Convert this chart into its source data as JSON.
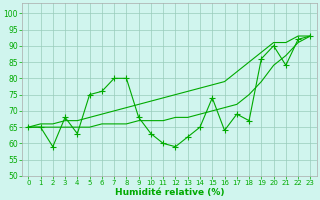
{
  "bg_color": "#d0f5ee",
  "grid_color": "#99ccbb",
  "line_color": "#00aa00",
  "xlabel": "Humidité relative (%)",
  "xlim": [
    -0.5,
    23.5
  ],
  "ylim": [
    50,
    103
  ],
  "yticks": [
    50,
    55,
    60,
    65,
    70,
    75,
    80,
    85,
    90,
    95,
    100
  ],
  "xticks": [
    0,
    1,
    2,
    3,
    4,
    5,
    6,
    7,
    8,
    9,
    10,
    11,
    12,
    13,
    14,
    15,
    16,
    17,
    18,
    19,
    20,
    21,
    22,
    23
  ],
  "zigzag": [
    65,
    65,
    59,
    68,
    63,
    75,
    76,
    80,
    80,
    68,
    63,
    60,
    59,
    62,
    65,
    74,
    64,
    69,
    67,
    86,
    90,
    84,
    92,
    93
  ],
  "trend_low": [
    65,
    65,
    65,
    65,
    65,
    65,
    66,
    66,
    66,
    67,
    67,
    67,
    68,
    68,
    69,
    70,
    71,
    72,
    75,
    79,
    84,
    87,
    91,
    93
  ],
  "trend_high": [
    65,
    66,
    66,
    67,
    67,
    68,
    69,
    70,
    71,
    72,
    73,
    74,
    75,
    76,
    77,
    78,
    79,
    82,
    85,
    88,
    91,
    91,
    93,
    93
  ]
}
